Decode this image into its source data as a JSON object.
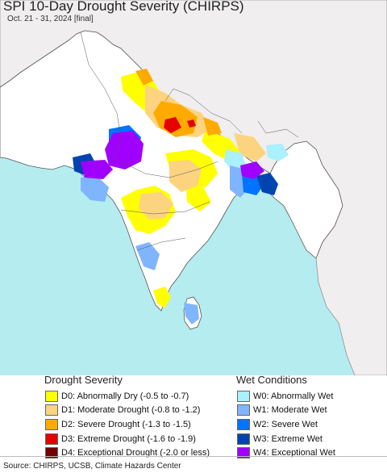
{
  "title": "SPI 10-Day Drought Severity (CHIRPS)",
  "subtitle": "Oct. 21 - 31, 2024 [final]",
  "colors": {
    "ocean": "#b5ecf0",
    "land_neutral": "#ffffff",
    "outside_land": "#f0eeee",
    "border": "#555555"
  },
  "legend": {
    "drought": {
      "heading": "Drought Severity",
      "items": [
        {
          "label": "D0: Abnormally Dry (-0.5 to -0.7)",
          "color": "#ffff00"
        },
        {
          "label": "D1: Moderate Drought (-0.8 to -1.2)",
          "color": "#fcd37f"
        },
        {
          "label": "D2: Severe Drought (-1.3 to -1.5)",
          "color": "#ffaa00"
        },
        {
          "label": "D3: Extreme Drought (-1.6 to -1.9)",
          "color": "#e60000"
        },
        {
          "label": "D4: Exceptional Drought (-2.0 or less)",
          "color": "#730000"
        }
      ]
    },
    "wet": {
      "heading": "Wet Conditions",
      "items": [
        {
          "label": "W0: Abnormally Wet",
          "color": "#aaf0ff"
        },
        {
          "label": "W1: Moderate Wet",
          "color": "#7fb5ff"
        },
        {
          "label": "W2: Severe Wet",
          "color": "#0073ff"
        },
        {
          "label": "W3: Extreme Wet",
          "color": "#0044b0"
        },
        {
          "label": "W4: Exceptional Wet",
          "color": "#a000ff"
        }
      ]
    }
  },
  "source": "Source: CHIRPS, UCSB, Climate Hazards Center"
}
